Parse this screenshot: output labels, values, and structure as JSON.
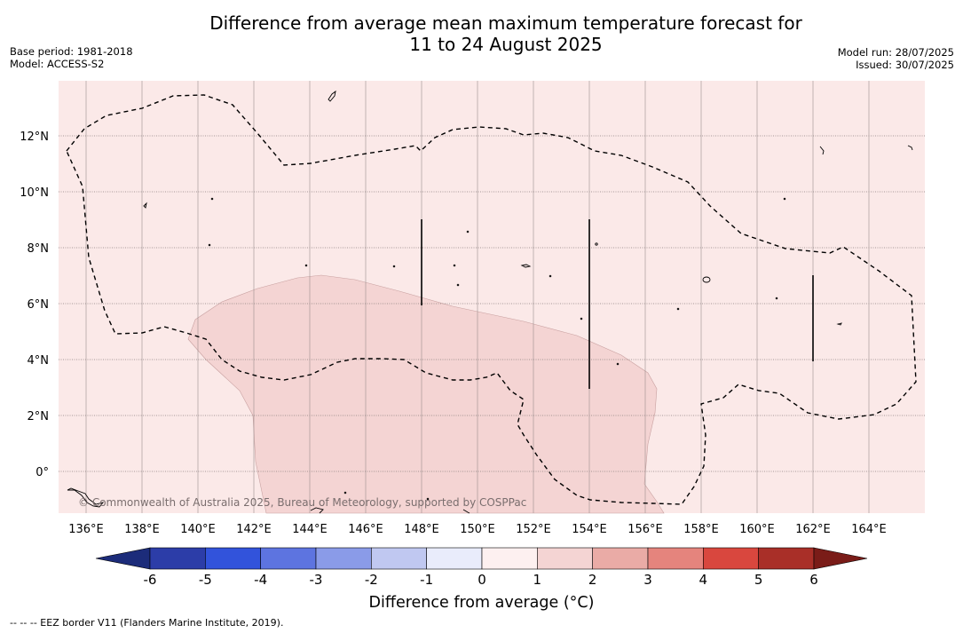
{
  "title": {
    "line1": "Difference from average mean maximum temperature forecast for",
    "line2": "11 to 24 August 2025"
  },
  "meta_left": {
    "base_period": "Base period: 1981-2018",
    "model": "Model: ACCESS-S2"
  },
  "meta_right": {
    "model_run": "Model run: 28/07/2025",
    "issued": "Issued: 30/07/2025"
  },
  "map": {
    "lon_labels": [
      "136°E",
      "138°E",
      "140°E",
      "142°E",
      "144°E",
      "146°E",
      "148°E",
      "150°E",
      "152°E",
      "154°E",
      "156°E",
      "158°E",
      "160°E",
      "162°E",
      "164°E"
    ],
    "lat_labels": [
      "12°N",
      "10°N",
      "8°N",
      "6°N",
      "4°N",
      "2°N",
      "0°"
    ],
    "copyright": "© Commonwealth of Australia 2025, Bureau of Meteorology, supported by COSPPac",
    "background_color": "#fbe9e8",
    "anomaly_color": "#f4d4d3"
  },
  "colorbar": {
    "ticks": [
      "-6",
      "-5",
      "-4",
      "-3",
      "-2",
      "-1",
      "0",
      "1",
      "2",
      "3",
      "4",
      "5",
      "6"
    ],
    "colors": [
      "#2c3da8",
      "#3253db",
      "#5d74e0",
      "#8a9be8",
      "#c0c8f1",
      "#e9ecfb",
      "#fdf0f0",
      "#f4d4d3",
      "#eaaba6",
      "#e5847d",
      "#d9473e",
      "#a92f28"
    ],
    "low_extend_color": "#1c2c7a",
    "high_extend_color": "#7a1c18",
    "label": "Difference from average (°C)"
  },
  "footnote": "--  --  -- EEZ border V11 (Flanders Marine Institute, 2019)."
}
